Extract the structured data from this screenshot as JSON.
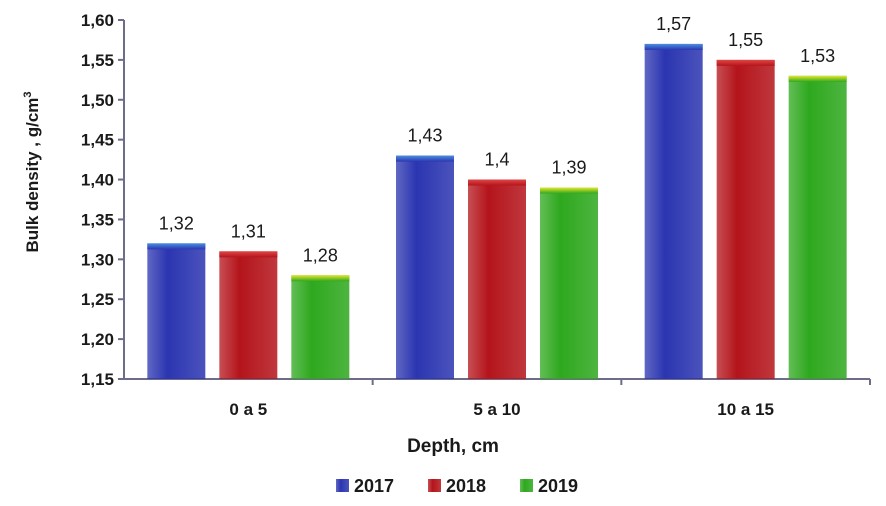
{
  "chart_data": {
    "type": "bar",
    "title": "",
    "xlabel": "Depth, cm",
    "ylabel": "Bulk density , g/cm",
    "ylabel_superscript": "3",
    "ylim": [
      1.15,
      1.6
    ],
    "yticks": [
      "1,15",
      "1,20",
      "1,25",
      "1,30",
      "1,35",
      "1,40",
      "1,45",
      "1,50",
      "1,55",
      "1,60"
    ],
    "categories": [
      "0 a 5",
      "5 a 10",
      "10 a 15"
    ],
    "series": [
      {
        "name": "2017",
        "color": "#2b35b0",
        "top_color": "#4a8fe0",
        "values": [
          1.32,
          1.43,
          1.57
        ],
        "labels": [
          "1,32",
          "1,43",
          "1,57"
        ]
      },
      {
        "name": "2018",
        "color": "#b4141b",
        "top_color": "#e04646",
        "values": [
          1.31,
          1.4,
          1.55
        ],
        "labels": [
          "1,31",
          "1,4",
          "1,55"
        ]
      },
      {
        "name": "2019",
        "color": "#2ea81e",
        "top_color": "#e6e62c",
        "values": [
          1.28,
          1.39,
          1.53
        ],
        "labels": [
          "1,28",
          "1,39",
          "1,53"
        ]
      }
    ],
    "grid": false,
    "legend_position": "bottom"
  }
}
